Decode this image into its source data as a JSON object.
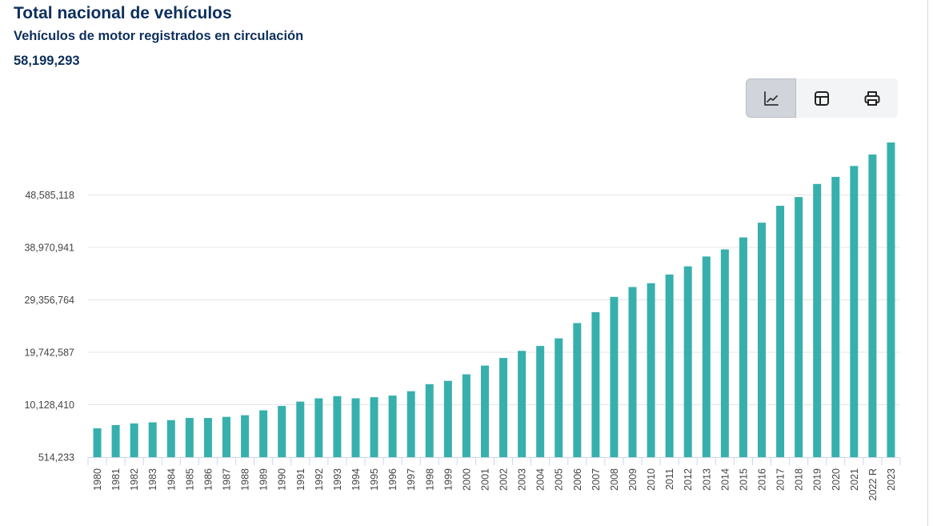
{
  "header": {
    "title": "Total nacional de vehículos",
    "subtitle": "Vehículos de motor registrados en circulación",
    "total": "58,199,293"
  },
  "toolbar": {
    "buttons": [
      {
        "icon": "line-chart-icon",
        "active": true
      },
      {
        "icon": "table-icon",
        "active": false
      },
      {
        "icon": "print-icon",
        "active": false
      }
    ]
  },
  "colors": {
    "bar": "#37b0ad",
    "grid": "#e6e6e6",
    "axis": "#ccd6eb",
    "title": "#0d2f5c"
  },
  "chart_data": {
    "type": "bar",
    "title": "",
    "xlabel": "",
    "ylabel": "",
    "grid": true,
    "ylim": [
      514233,
      58199293
    ],
    "yticks": [
      {
        "value": 514233,
        "label": "514,233"
      },
      {
        "value": 10128410,
        "label": "10,128,410"
      },
      {
        "value": 19742587,
        "label": "19,742,587"
      },
      {
        "value": 29356764,
        "label": "29,356,764"
      },
      {
        "value": 38970941,
        "label": "38,970,941"
      },
      {
        "value": 48585118,
        "label": "48,585,118"
      }
    ],
    "categories": [
      "1980",
      "1981",
      "1982",
      "1983",
      "1984",
      "1985",
      "1986",
      "1987",
      "1988",
      "1989",
      "1990",
      "1991",
      "1992",
      "1993",
      "1994",
      "1995",
      "1996",
      "1997",
      "1998",
      "1999",
      "2000",
      "2001",
      "2002",
      "2003",
      "2004",
      "2005",
      "2006",
      "2007",
      "2008",
      "2009",
      "2010",
      "2011",
      "2012",
      "2013",
      "2014",
      "2015",
      "2016",
      "2017",
      "2018",
      "2019",
      "2020",
      "2021",
      "2022 R",
      "2023"
    ],
    "values": [
      5800000,
      6400000,
      6700000,
      6900000,
      7300000,
      7700000,
      7700000,
      7900000,
      8200000,
      9100000,
      9900000,
      10700000,
      11300000,
      11700000,
      11300000,
      11500000,
      11800000,
      12600000,
      13900000,
      14500000,
      15700000,
      17300000,
      18700000,
      20000000,
      20900000,
      22300000,
      25100000,
      27100000,
      29900000,
      31700000,
      32400000,
      34000000,
      35500000,
      37300000,
      38600000,
      40800000,
      43500000,
      46600000,
      48200000,
      50600000,
      51900000,
      53900000,
      56000000,
      58199293
    ]
  }
}
